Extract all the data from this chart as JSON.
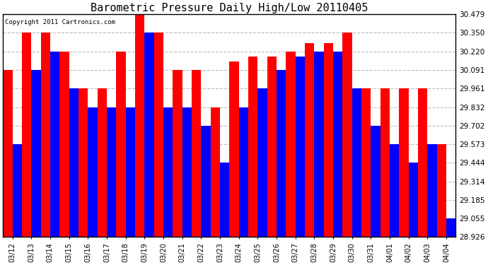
{
  "title": "Barometric Pressure Daily High/Low 20110405",
  "copyright_text": "Copyright 2011 Cartronics.com",
  "dates": [
    "03/12",
    "03/13",
    "03/14",
    "03/15",
    "03/16",
    "03/17",
    "03/18",
    "03/19",
    "03/20",
    "03/21",
    "03/22",
    "03/23",
    "03/24",
    "03/25",
    "03/26",
    "03/27",
    "03/28",
    "03/29",
    "03/30",
    "03/31",
    "04/01",
    "04/02",
    "04/03",
    "04/04"
  ],
  "highs": [
    30.091,
    30.35,
    30.35,
    30.22,
    29.961,
    29.961,
    30.22,
    30.479,
    30.35,
    30.091,
    30.091,
    29.832,
    30.15,
    30.185,
    30.185,
    30.22,
    30.28,
    30.28,
    30.35,
    29.961,
    29.961,
    29.961,
    29.961,
    29.573
  ],
  "lows": [
    29.573,
    30.091,
    30.22,
    29.961,
    29.832,
    29.832,
    29.832,
    30.35,
    29.832,
    29.832,
    29.702,
    29.444,
    29.832,
    29.961,
    30.091,
    30.185,
    30.22,
    30.22,
    29.961,
    29.702,
    29.573,
    29.444,
    29.573,
    29.055
  ],
  "high_color": "#FF0000",
  "low_color": "#0000FF",
  "bg_color": "#FFFFFF",
  "plot_bg_color": "#FFFFFF",
  "grid_color": "#BEBEBE",
  "yticks": [
    28.926,
    29.055,
    29.185,
    29.314,
    29.444,
    29.573,
    29.702,
    29.832,
    29.961,
    30.091,
    30.22,
    30.35,
    30.479
  ],
  "ymin": 28.926,
  "ymax": 30.479,
  "bar_width": 0.5,
  "figwidth": 6.9,
  "figheight": 3.75,
  "dpi": 100
}
